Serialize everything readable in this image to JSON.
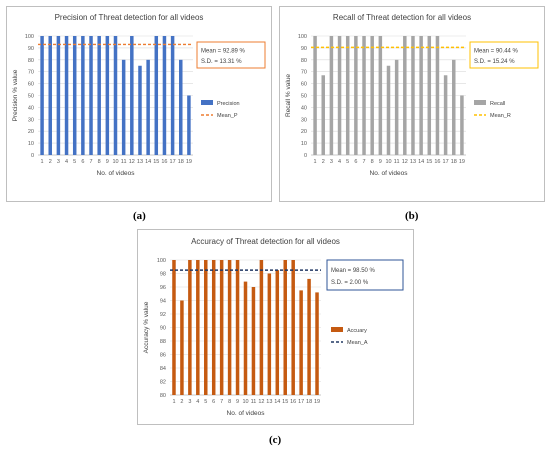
{
  "panels": [
    {
      "sublabel": "(a)",
      "chart_data": {
        "type": "bar",
        "title": "Precision of Threat detection for all videos",
        "xlabel": "No. of videos",
        "ylabel": "Precision % value",
        "categories": [
          "1",
          "2",
          "3",
          "4",
          "5",
          "6",
          "7",
          "8",
          "9",
          "10",
          "11",
          "12",
          "13",
          "14",
          "15",
          "16",
          "17",
          "18",
          "19"
        ],
        "series": [
          {
            "name": "Precision",
            "values": [
              100,
              100,
              100,
              100,
              100,
              100,
              100,
              100,
              100,
              100,
              80,
              100,
              75,
              80,
              100,
              100,
              100,
              80,
              50
            ],
            "color": "#4472c4"
          }
        ],
        "mean_line": {
          "name": "Mean_P",
          "value": 92.89,
          "color": "#ed7d31"
        },
        "stats_box": {
          "mean": "Mean = 92.89 %",
          "sd": "S.D. = 13.31 %",
          "border": "#ed7d31"
        },
        "ylim": [
          0,
          100
        ],
        "yticks": [
          0,
          10,
          20,
          30,
          40,
          50,
          60,
          70,
          80,
          90,
          100
        ],
        "grid": true,
        "legend": "right"
      }
    },
    {
      "sublabel": "(b)",
      "chart_data": {
        "type": "bar",
        "title": "Recall of Threat detection for all videos",
        "xlabel": "No. of videos",
        "ylabel": "Recall % value",
        "categories": [
          "1",
          "2",
          "3",
          "4",
          "5",
          "6",
          "7",
          "8",
          "9",
          "10",
          "11",
          "12",
          "13",
          "14",
          "15",
          "16",
          "17",
          "18",
          "19"
        ],
        "series": [
          {
            "name": "Recall",
            "values": [
              100,
              67,
              100,
              100,
              100,
              100,
              100,
              100,
              100,
              75,
              80,
              100,
              100,
              100,
              100,
              100,
              67,
              80,
              50
            ],
            "color": "#a5a5a5"
          }
        ],
        "mean_line": {
          "name": "Mean_R",
          "value": 90.44,
          "color": "#ffc000"
        },
        "stats_box": {
          "mean": "Mean = 90.44 %",
          "sd": "S.D. = 15.24 %",
          "border": "#ffc000"
        },
        "ylim": [
          0,
          100
        ],
        "yticks": [
          0,
          10,
          20,
          30,
          40,
          50,
          60,
          70,
          80,
          90,
          100
        ],
        "grid": true,
        "legend": "right"
      }
    },
    {
      "sublabel": "(c)",
      "chart_data": {
        "type": "bar",
        "title": "Accuracy of Threat detection for all videos",
        "xlabel": "No. of videos",
        "ylabel": "Accuracy % value",
        "categories": [
          "1",
          "2",
          "3",
          "4",
          "5",
          "6",
          "7",
          "8",
          "9",
          "10",
          "11",
          "12",
          "13",
          "14",
          "15",
          "16",
          "17",
          "18",
          "19"
        ],
        "series": [
          {
            "name": "Accuary",
            "values": [
              100,
              94,
              100,
              100,
              100,
              100,
              100,
              100,
              100,
              96.8,
              96,
              100,
              98,
              98.5,
              100,
              100,
              95.5,
              97.2,
              95.2
            ],
            "color": "#c55a11"
          }
        ],
        "mean_line": {
          "name": "Mean_A",
          "value": 98.5,
          "color": "#203864"
        },
        "stats_box": {
          "mean": "Mean = 98.50 %",
          "sd": "S.D. = 2.00 %",
          "border": "#2f5597"
        },
        "ylim": [
          80,
          100
        ],
        "yticks": [
          80,
          82,
          84,
          86,
          88,
          90,
          92,
          94,
          96,
          98,
          100
        ],
        "grid": true,
        "legend": "right"
      }
    }
  ]
}
